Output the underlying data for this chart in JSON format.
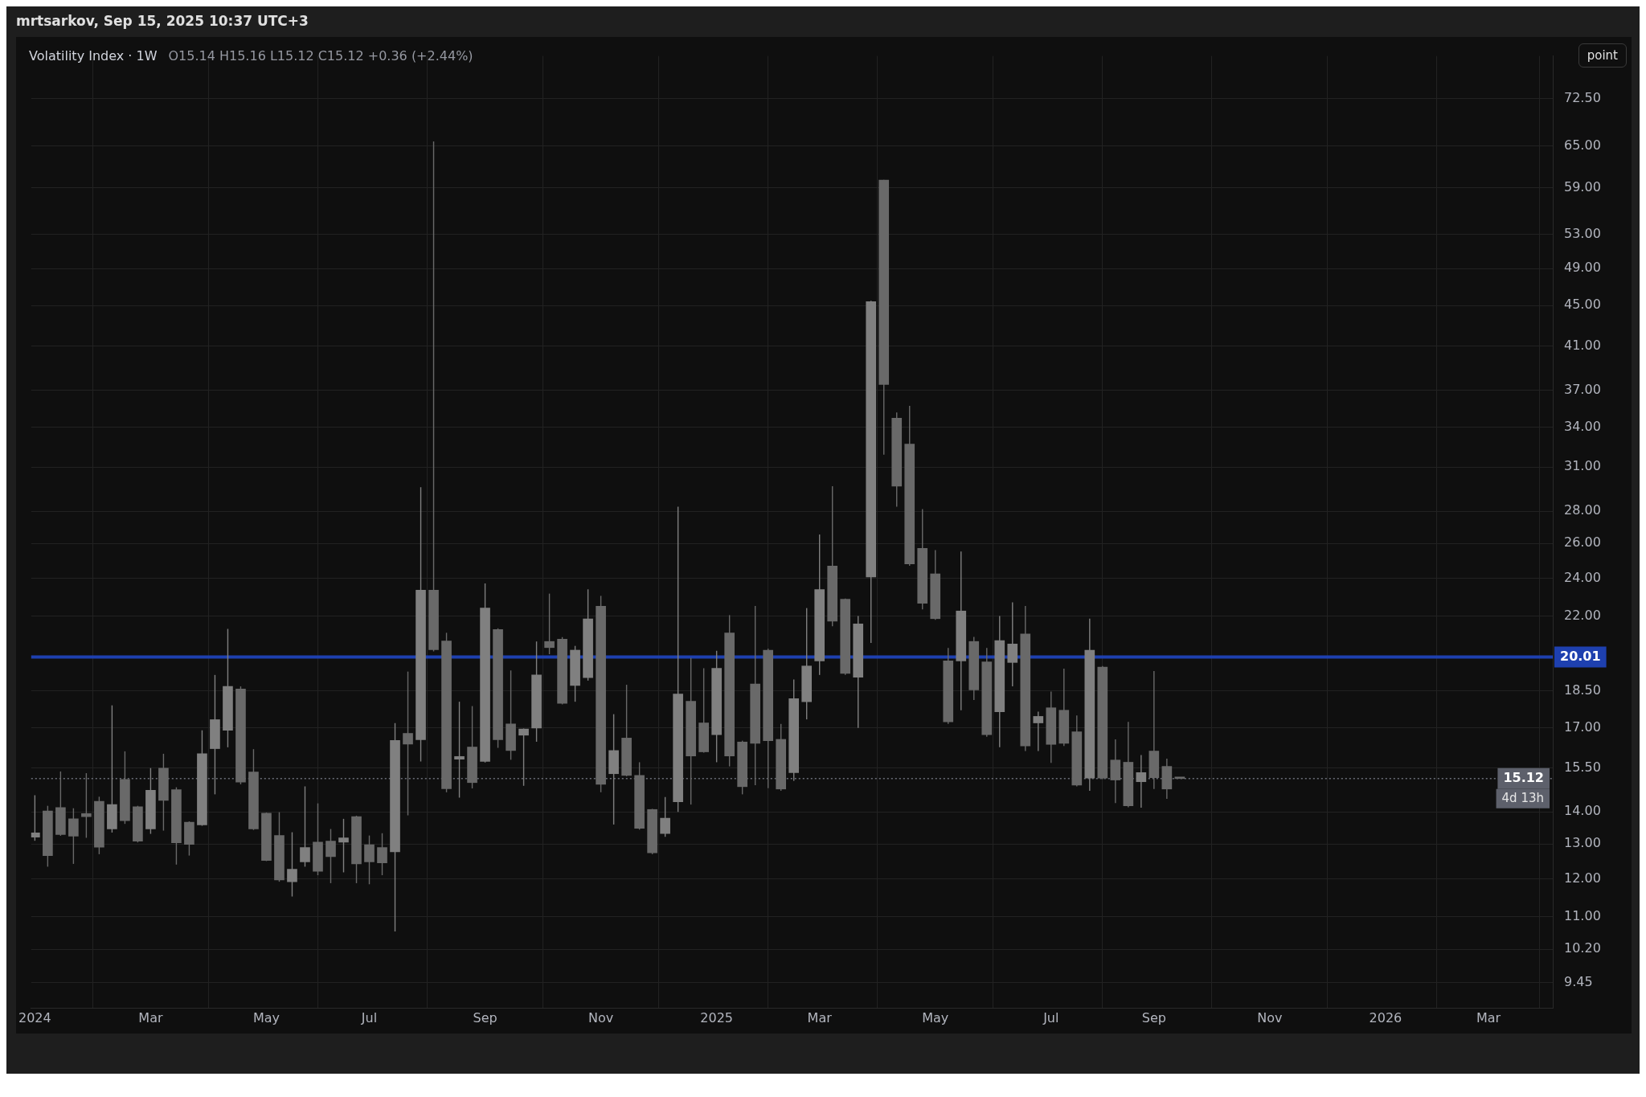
{
  "chart_data": {
    "type": "candlestick",
    "title": "Volatility Index · 1W",
    "subtitle": "O15.14  H15.16  L15.12  C15.12  +0.36 (+2.44%)",
    "annotations": [
      "mrtsarkov, Sep 15, 2025 10:37 UTC+3",
      "point",
      "4d 13h"
    ],
    "colors": [
      "#808080",
      "#696969",
      "#696969",
      "#696969",
      "#696969",
      "#696969",
      "#808080",
      "#696969",
      "#696969",
      "#808080",
      "#696969",
      "#696969",
      "#696969",
      "#808080",
      "#808080",
      "#808080",
      "#696969",
      "#696969",
      "#696969",
      "#696969",
      "#808080",
      "#808080",
      "#696969",
      "#696969",
      "#808080",
      "#696969",
      "#696969",
      "#696969",
      "#808080",
      "#696969",
      "#808080",
      "#696969",
      "#696969",
      "#808080",
      "#696969",
      "#808080",
      "#696969",
      "#696969",
      "#808080",
      "#808080",
      "#696969",
      "#696969",
      "#808080",
      "#808080",
      "#696969",
      "#808080",
      "#696969",
      "#696969",
      "#696969",
      "#808080",
      "#808080",
      "#696969",
      "#696969",
      "#808080",
      "#696969",
      "#696969",
      "#696969",
      "#696969",
      "#696969",
      "#808080",
      "#808080",
      "#808080",
      "#696969",
      "#696969",
      "#808080",
      "#808080",
      "#696969",
      "#696969",
      "#696969",
      "#696969",
      "#696969",
      "#696969",
      "#808080",
      "#696969",
      "#696969",
      "#808080",
      "#808080",
      "#696969",
      "#808080",
      "#696969",
      "#696969",
      "#696969",
      "#808080",
      "#696969",
      "#696969",
      "#696969",
      "#808080",
      "#696969",
      "#696969",
      "#696969"
    ],
    "x": [
      "2024-01-01",
      "2024-01-08",
      "2024-01-15",
      "2024-01-22",
      "2024-01-29",
      "2024-02-05",
      "2024-02-12",
      "2024-02-19",
      "2024-02-26",
      "2024-03-04",
      "2024-03-11",
      "2024-03-18",
      "2024-03-25",
      "2024-04-01",
      "2024-04-08",
      "2024-04-15",
      "2024-04-22",
      "2024-04-29",
      "2024-05-06",
      "2024-05-13",
      "2024-05-20",
      "2024-05-27",
      "2024-06-03",
      "2024-06-10",
      "2024-06-17",
      "2024-06-24",
      "2024-07-01",
      "2024-07-08",
      "2024-07-15",
      "2024-07-22",
      "2024-07-29",
      "2024-08-05",
      "2024-08-12",
      "2024-08-19",
      "2024-08-26",
      "2024-09-02",
      "2024-09-09",
      "2024-09-16",
      "2024-09-23",
      "2024-09-30",
      "2024-10-07",
      "2024-10-14",
      "2024-10-21",
      "2024-10-28",
      "2024-11-04",
      "2024-11-11",
      "2024-11-18",
      "2024-11-25",
      "2024-12-02",
      "2024-12-09",
      "2024-12-16",
      "2024-12-23",
      "2024-12-30",
      "2025-01-06",
      "2025-01-13",
      "2025-01-20",
      "2025-01-27",
      "2025-02-03",
      "2025-02-10",
      "2025-02-17",
      "2025-02-24",
      "2025-03-03",
      "2025-03-10",
      "2025-03-17",
      "2025-03-24",
      "2025-03-31",
      "2025-04-07",
      "2025-04-14",
      "2025-04-21",
      "2025-04-28",
      "2025-05-05",
      "2025-05-12",
      "2025-05-19",
      "2025-05-26",
      "2025-06-02",
      "2025-06-09",
      "2025-06-16",
      "2025-06-23",
      "2025-06-30",
      "2025-07-07",
      "2025-07-14",
      "2025-07-21",
      "2025-07-28",
      "2025-08-04",
      "2025-08-11",
      "2025-08-18",
      "2025-08-25",
      "2025-09-01",
      "2025-09-08",
      "2025-09-15"
    ],
    "ohlc": [
      [
        13.21,
        14.55,
        13.1,
        13.34
      ],
      [
        14.03,
        14.2,
        12.34,
        12.66
      ],
      [
        14.14,
        15.37,
        13.25,
        13.29
      ],
      [
        13.78,
        14.12,
        12.42,
        13.24
      ],
      [
        13.95,
        15.31,
        13.19,
        13.85
      ],
      [
        14.35,
        14.5,
        12.7,
        12.91
      ],
      [
        13.46,
        17.9,
        13.35,
        14.24
      ],
      [
        15.09,
        16.1,
        13.62,
        13.72
      ],
      [
        14.17,
        14.2,
        13.05,
        13.09
      ],
      [
        13.46,
        15.49,
        13.31,
        14.72
      ],
      [
        15.49,
        16.01,
        13.41,
        14.38
      ],
      [
        14.74,
        14.82,
        12.4,
        13.04
      ],
      [
        13.67,
        13.7,
        12.66,
        12.99
      ],
      [
        13.59,
        16.9,
        13.56,
        16.01
      ],
      [
        16.2,
        19.2,
        14.58,
        17.32
      ],
      [
        16.9,
        21.35,
        16.25,
        18.7
      ],
      [
        18.59,
        18.7,
        14.92,
        15.0
      ],
      [
        15.35,
        16.18,
        13.43,
        13.46
      ],
      [
        13.96,
        13.98,
        12.5,
        12.52
      ],
      [
        13.26,
        13.99,
        11.92,
        11.97
      ],
      [
        11.92,
        13.36,
        11.52,
        12.27
      ],
      [
        12.48,
        14.85,
        12.34,
        12.9
      ],
      [
        13.06,
        14.28,
        12.1,
        12.21
      ],
      [
        13.09,
        13.46,
        11.88,
        12.63
      ],
      [
        13.06,
        13.78,
        12.18,
        13.19
      ],
      [
        13.85,
        13.88,
        11.88,
        12.42
      ],
      [
        12.98,
        13.26,
        11.85,
        12.48
      ],
      [
        12.9,
        13.33,
        12.1,
        12.45
      ],
      [
        12.77,
        17.18,
        10.63,
        16.51
      ],
      [
        16.78,
        19.35,
        13.89,
        16.37
      ],
      [
        16.54,
        29.6,
        15.73,
        23.34
      ],
      [
        23.34,
        65.7,
        20.27,
        20.35
      ],
      [
        20.76,
        21.16,
        14.65,
        14.77
      ],
      [
        15.81,
        18.05,
        14.47,
        15.91
      ],
      [
        16.26,
        17.87,
        14.78,
        14.98
      ],
      [
        15.73,
        23.71,
        15.69,
        22.4
      ],
      [
        21.32,
        21.38,
        16.23,
        16.54
      ],
      [
        17.15,
        19.4,
        15.79,
        16.13
      ],
      [
        16.71,
        16.97,
        14.87,
        16.95
      ],
      [
        16.99,
        20.74,
        16.46,
        19.2
      ],
      [
        20.74,
        23.16,
        20.14,
        20.45
      ],
      [
        20.85,
        20.95,
        17.94,
        17.98
      ],
      [
        18.74,
        20.53,
        18.05,
        20.33
      ],
      [
        19.08,
        23.39,
        18.95,
        21.85
      ],
      [
        22.5,
        23.04,
        14.65,
        14.92
      ],
      [
        15.29,
        17.54,
        13.6,
        16.13
      ],
      [
        16.6,
        18.77,
        15.2,
        15.23
      ],
      [
        15.23,
        15.7,
        13.44,
        13.48
      ],
      [
        14.08,
        14.1,
        12.7,
        12.74
      ],
      [
        13.32,
        14.49,
        13.22,
        13.8
      ],
      [
        14.33,
        28.3,
        14.0,
        18.37
      ],
      [
        18.07,
        19.97,
        14.24,
        15.93
      ],
      [
        17.19,
        19.5,
        16.05,
        16.08
      ],
      [
        16.73,
        20.3,
        15.7,
        19.5
      ],
      [
        21.15,
        22.04,
        15.55,
        15.93
      ],
      [
        16.45,
        16.5,
        14.58,
        14.84
      ],
      [
        18.8,
        22.51,
        14.89,
        16.4
      ],
      [
        20.33,
        20.4,
        14.79,
        16.5
      ],
      [
        16.55,
        17.15,
        14.7,
        14.76
      ],
      [
        15.33,
        19.0,
        15.04,
        18.18
      ],
      [
        18.05,
        22.4,
        17.33,
        19.6
      ],
      [
        19.83,
        26.54,
        19.2,
        23.38
      ],
      [
        24.68,
        29.67,
        21.48,
        21.73
      ],
      [
        22.86,
        22.9,
        19.2,
        19.27
      ],
      [
        19.1,
        21.99,
        16.99,
        21.6
      ],
      [
        24.07,
        45.5,
        20.67,
        45.4
      ],
      [
        60.1,
        60.13,
        31.9,
        37.5
      ],
      [
        34.7,
        35.17,
        28.3,
        29.67
      ],
      [
        32.7,
        35.7,
        24.7,
        24.8
      ],
      [
        25.71,
        28.14,
        22.33,
        22.65
      ],
      [
        24.24,
        25.6,
        21.8,
        21.86
      ],
      [
        19.83,
        20.43,
        17.15,
        17.23
      ],
      [
        19.83,
        25.52,
        17.7,
        22.25
      ],
      [
        20.74,
        20.96,
        18.12,
        18.55
      ],
      [
        19.79,
        20.43,
        16.65,
        16.73
      ],
      [
        17.64,
        21.99,
        16.25,
        20.78
      ],
      [
        19.76,
        22.7,
        18.7,
        20.62
      ],
      [
        21.1,
        22.51,
        16.11,
        16.3
      ],
      [
        17.19,
        17.64,
        16.11,
        17.45
      ],
      [
        17.8,
        18.48,
        15.68,
        16.36
      ],
      [
        17.7,
        19.48,
        16.3,
        16.4
      ],
      [
        16.84,
        17.49,
        14.85,
        14.89
      ],
      [
        15.14,
        21.86,
        14.7,
        20.33
      ],
      [
        19.55,
        19.6,
        15.1,
        15.14
      ],
      [
        15.78,
        16.55,
        14.29,
        15.07
      ],
      [
        15.7,
        17.23,
        14.15,
        14.2
      ],
      [
        15.01,
        15.96,
        14.14,
        15.33
      ],
      [
        16.11,
        19.37,
        14.76,
        15.15
      ],
      [
        15.55,
        15.83,
        14.43,
        14.76
      ],
      [
        15.14,
        15.16,
        15.12,
        15.12
      ]
    ],
    "xlim": [
      "2023-12-30",
      "2026-04-06"
    ],
    "xticks": [
      {
        "value": "2024-01-01",
        "label": "2024"
      },
      {
        "value": "2024-03-04",
        "label": "Mar"
      },
      {
        "value": "2024-05-06",
        "label": "May"
      },
      {
        "value": "2024-07-01",
        "label": "Jul"
      },
      {
        "value": "2024-09-02",
        "label": "Sep"
      },
      {
        "value": "2024-11-04",
        "label": "Nov"
      },
      {
        "value": "2025-01-06",
        "label": "2025"
      },
      {
        "value": "2025-03-03",
        "label": "Mar"
      },
      {
        "value": "2025-05-05",
        "label": "May"
      },
      {
        "value": "2025-07-07",
        "label": "Jul"
      },
      {
        "value": "2025-09-01",
        "label": "Sep"
      },
      {
        "value": "2025-11-03",
        "label": "Nov"
      },
      {
        "value": "2026-01-05",
        "label": "2026"
      },
      {
        "value": "2026-03-02",
        "label": "Mar"
      }
    ],
    "ylim": [
      8.9,
      80
    ],
    "yticks": [
      {
        "value": 9.45,
        "label": "9.45"
      },
      {
        "value": 10.2,
        "label": "10.20"
      },
      {
        "value": 11,
        "label": "11.00"
      },
      {
        "value": 12,
        "label": "12.00"
      },
      {
        "value": 13,
        "label": "13.00"
      },
      {
        "value": 14,
        "label": "14.00"
      },
      {
        "value": 15.5,
        "label": "15.50"
      },
      {
        "value": 17,
        "label": "17.00"
      },
      {
        "value": 18.5,
        "label": "18.50"
      },
      {
        "value": 22,
        "label": "22.00"
      },
      {
        "value": 24,
        "label": "24.00"
      },
      {
        "value": 26,
        "label": "26.00"
      },
      {
        "value": 28,
        "label": "28.00"
      },
      {
        "value": 31,
        "label": "31.00"
      },
      {
        "value": 34,
        "label": "34.00"
      },
      {
        "value": 37,
        "label": "37.00"
      },
      {
        "value": 41,
        "label": "41.00"
      },
      {
        "value": 45,
        "label": "45.00"
      },
      {
        "value": 49,
        "label": "49.00"
      },
      {
        "value": 53,
        "label": "53.00"
      },
      {
        "value": 59,
        "label": "59.00"
      },
      {
        "value": 65,
        "label": "65.00"
      },
      {
        "value": 72.5,
        "label": "72.50"
      }
    ],
    "log": "y",
    "grid": true,
    "legend": false,
    "ref_lines": [
      {
        "axis": "y",
        "value": 20.01,
        "label": "20.01",
        "color": "#1e40af"
      },
      {
        "axis": "y",
        "value": 15.12,
        "label": "15.12",
        "color": "#6b6e78",
        "line_style": "dotted"
      }
    ]
  }
}
